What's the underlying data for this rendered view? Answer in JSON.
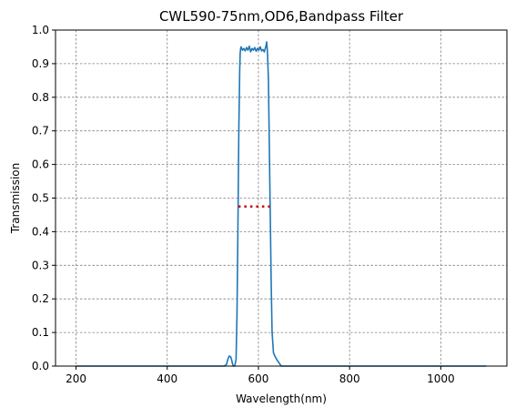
{
  "chart_data": {
    "type": "line",
    "title": "CWL590-75nm,OD6,Bandpass Filter",
    "xlabel": "Wavelength(nm)",
    "ylabel": "Transmission",
    "xlim": [
      155,
      1145
    ],
    "ylim": [
      0.0,
      1.0
    ],
    "xticks": [
      200,
      400,
      600,
      800,
      1000
    ],
    "yticks": [
      0.0,
      0.1,
      0.2,
      0.3,
      0.4,
      0.5,
      0.6,
      0.7,
      0.8,
      0.9,
      1.0
    ],
    "grid": true,
    "series": [
      {
        "color": "#1f77b4",
        "x": [
          200,
          300,
          400,
          500,
          525,
          530,
          533,
          536,
          539,
          541,
          543,
          545,
          548,
          551,
          553,
          555,
          557,
          559,
          560,
          561,
          562,
          563,
          565,
          568,
          571,
          574,
          577,
          580,
          583,
          586,
          589,
          592,
          595,
          598,
          601,
          604,
          607,
          610,
          613,
          615,
          617,
          618,
          619,
          620,
          622,
          624,
          626,
          628,
          630,
          633,
          636,
          640,
          645,
          650,
          660,
          700,
          800,
          900,
          1000,
          1100
        ],
        "y": [
          0.0,
          0.0,
          0.0,
          0.0,
          0.0,
          0.005,
          0.02,
          0.03,
          0.028,
          0.02,
          0.008,
          0.0,
          0.0,
          0.02,
          0.15,
          0.4,
          0.7,
          0.88,
          0.93,
          0.945,
          0.95,
          0.947,
          0.94,
          0.945,
          0.938,
          0.948,
          0.94,
          0.952,
          0.935,
          0.945,
          0.94,
          0.948,
          0.937,
          0.945,
          0.94,
          0.95,
          0.938,
          0.942,
          0.935,
          0.945,
          0.955,
          0.965,
          0.95,
          0.93,
          0.85,
          0.65,
          0.45,
          0.25,
          0.1,
          0.04,
          0.03,
          0.02,
          0.01,
          0.0,
          0.0,
          0.0,
          0.0,
          0.0,
          0.0,
          0.0
        ]
      },
      {
        "color": "#cc0000",
        "style": "dotted",
        "x": [
          556,
          625
        ],
        "y": [
          0.475,
          0.475
        ]
      }
    ]
  }
}
